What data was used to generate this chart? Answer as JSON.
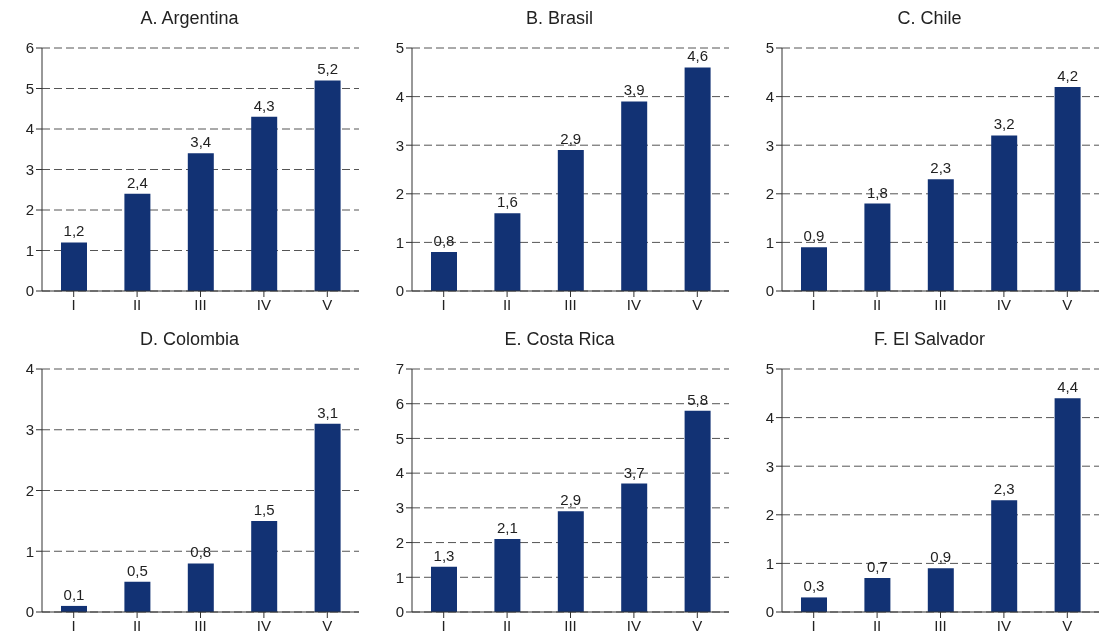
{
  "chart_data": [
    {
      "type": "bar",
      "title": "A. Argentina",
      "categories": [
        "I",
        "II",
        "III",
        "IV",
        "V"
      ],
      "values": [
        1.2,
        2.4,
        3.4,
        4.3,
        5.2
      ],
      "value_labels": [
        "1,2",
        "2,4",
        "3,4",
        "4,3",
        "5,2"
      ],
      "color": "#123274",
      "ylim": [
        0,
        6
      ],
      "yticks": [
        0,
        1,
        2,
        3,
        4,
        5,
        6
      ],
      "grid": "y"
    },
    {
      "type": "bar",
      "title": "B. Brasil",
      "categories": [
        "I",
        "II",
        "III",
        "IV",
        "V"
      ],
      "values": [
        0.8,
        1.6,
        2.9,
        3.9,
        4.6
      ],
      "value_labels": [
        "0,8",
        "1,6",
        "2,9",
        "3,9",
        "4,6"
      ],
      "color": "#123274",
      "ylim": [
        0,
        5
      ],
      "yticks": [
        0,
        1,
        2,
        3,
        4,
        5
      ],
      "grid": "y"
    },
    {
      "type": "bar",
      "title": "C. Chile",
      "categories": [
        "I",
        "II",
        "III",
        "IV",
        "V"
      ],
      "values": [
        0.9,
        1.8,
        2.3,
        3.2,
        4.2
      ],
      "value_labels": [
        "0,9",
        "1,8",
        "2,3",
        "3,2",
        "4,2"
      ],
      "color": "#123274",
      "ylim": [
        0,
        5
      ],
      "yticks": [
        0,
        1,
        2,
        3,
        4,
        5
      ],
      "grid": "y"
    },
    {
      "type": "bar",
      "title": "D. Colombia",
      "categories": [
        "I",
        "II",
        "III",
        "IV",
        "V"
      ],
      "values": [
        0.1,
        0.5,
        0.8,
        1.5,
        3.1
      ],
      "value_labels": [
        "0,1",
        "0,5",
        "0,8",
        "1,5",
        "3,1"
      ],
      "color": "#123274",
      "ylim": [
        0,
        4
      ],
      "yticks": [
        0,
        1,
        2,
        3,
        4
      ],
      "grid": "y"
    },
    {
      "type": "bar",
      "title": "E. Costa Rica",
      "categories": [
        "I",
        "II",
        "III",
        "IV",
        "V"
      ],
      "values": [
        1.3,
        2.1,
        2.9,
        3.7,
        5.8
      ],
      "value_labels": [
        "1,3",
        "2,1",
        "2,9",
        "3,7",
        "5,8"
      ],
      "color": "#123274",
      "ylim": [
        0,
        7
      ],
      "yticks": [
        0,
        1,
        2,
        3,
        4,
        5,
        6,
        7
      ],
      "grid": "y"
    },
    {
      "type": "bar",
      "title": "F. El Salvador",
      "categories": [
        "I",
        "II",
        "III",
        "IV",
        "V"
      ],
      "values": [
        0.3,
        0.7,
        0.9,
        2.3,
        4.4
      ],
      "value_labels": [
        "0,3",
        "0,7",
        "0,9",
        "2,3",
        "4,4"
      ],
      "color": "#123274",
      "ylim": [
        0,
        5
      ],
      "yticks": [
        0,
        1,
        2,
        3,
        4,
        5
      ],
      "grid": "y"
    }
  ]
}
